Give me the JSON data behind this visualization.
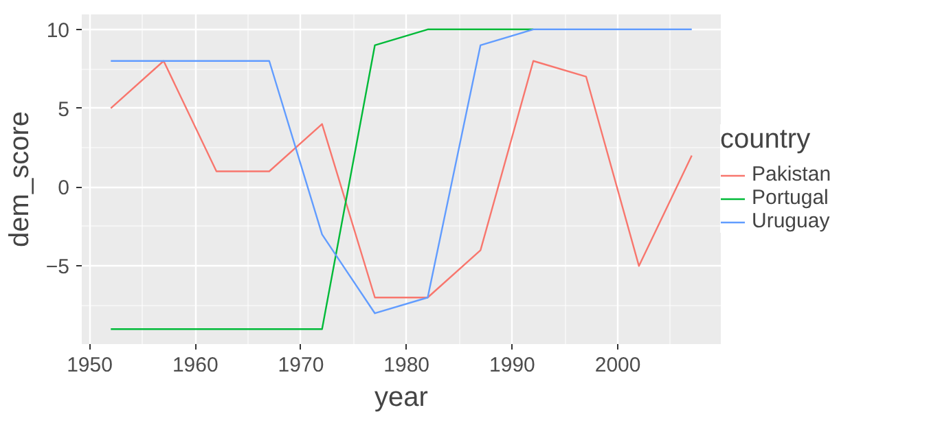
{
  "chart_data": {
    "type": "line",
    "xlabel": "year",
    "ylabel": "dem_score",
    "legend_title": "country",
    "legend": "right",
    "grid": true,
    "x": [
      1952,
      1957,
      1962,
      1967,
      1972,
      1977,
      1982,
      1987,
      1992,
      1997,
      2002,
      2007
    ],
    "xlim": [
      1949.25,
      2009.75
    ],
    "xticks": [
      1950,
      1960,
      1970,
      1980,
      1990,
      2000
    ],
    "ylim": [
      -9.95,
      10.95
    ],
    "yticks": [
      -5,
      0,
      5,
      10
    ],
    "series": [
      {
        "name": "Pakistan",
        "color": "#f8766d",
        "values": [
          5,
          8,
          1,
          1,
          4,
          -7,
          -7,
          -4,
          8,
          7,
          -5,
          2
        ]
      },
      {
        "name": "Portugal",
        "color": "#00ba38",
        "values": [
          -9,
          -9,
          -9,
          -9,
          -9,
          9,
          10,
          10,
          10,
          null,
          null,
          null
        ]
      },
      {
        "name": "Uruguay",
        "color": "#619cff",
        "values": [
          8,
          8,
          8,
          8,
          -3,
          -8,
          -7,
          9,
          10,
          10,
          10,
          10
        ]
      }
    ]
  }
}
